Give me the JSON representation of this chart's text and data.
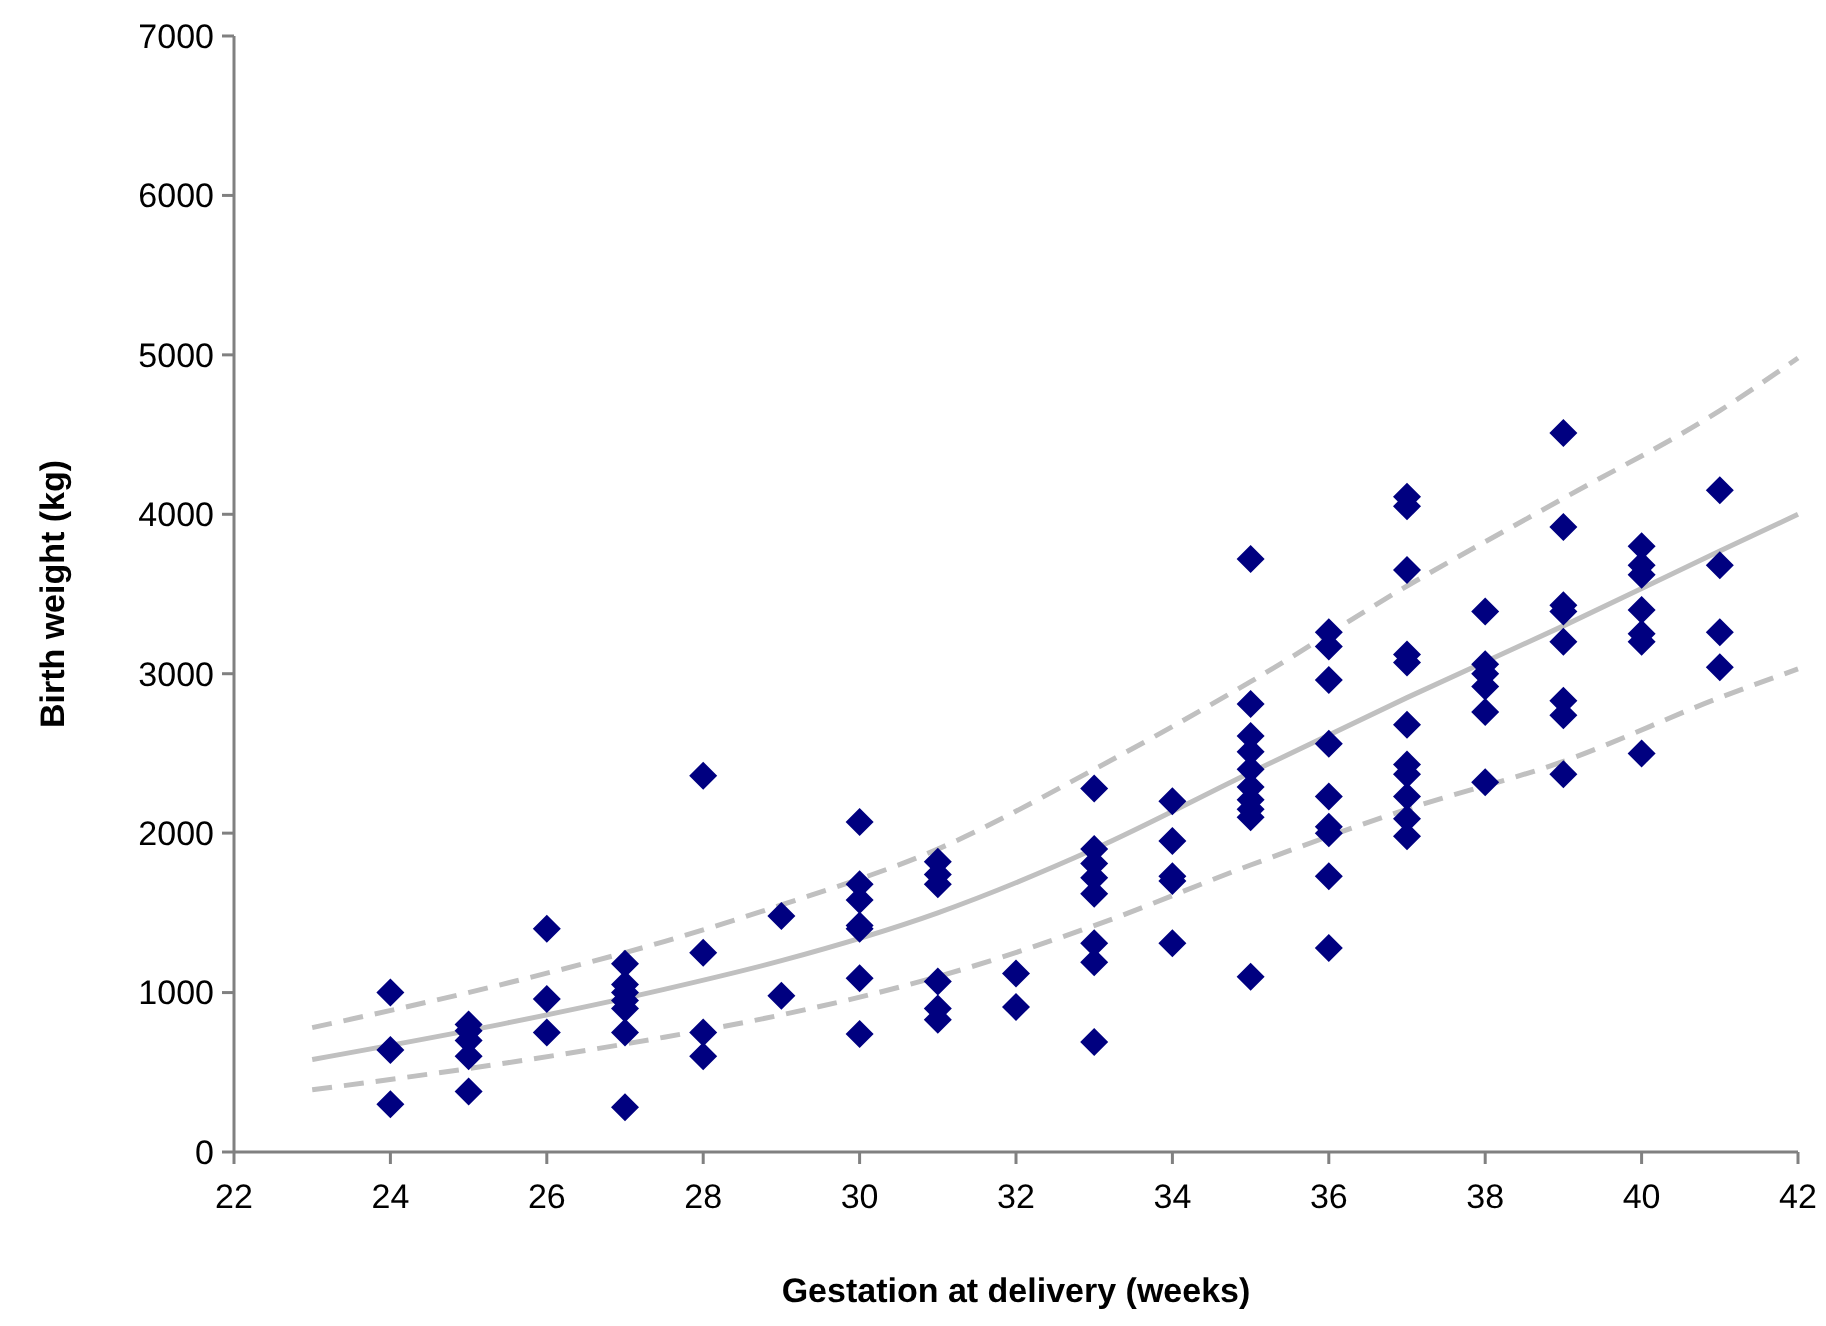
{
  "chart_data": {
    "type": "scatter",
    "xlabel": "Gestation at delivery (weeks)",
    "ylabel": "Birth weight (kg)",
    "xlim": [
      22,
      42
    ],
    "xticks": [
      22,
      24,
      26,
      28,
      30,
      32,
      34,
      36,
      38,
      40,
      42
    ],
    "ylim": [
      0,
      7000
    ],
    "yticks": [
      0,
      1000,
      2000,
      3000,
      4000,
      5000,
      6000,
      7000
    ],
    "grid": false,
    "series": [
      {
        "color": "#000080",
        "marker": "diamond",
        "x": [
          24,
          24,
          24,
          25,
          25,
          25,
          25,
          25,
          26,
          26,
          26,
          27,
          27,
          27,
          27,
          27,
          27,
          27,
          28,
          28,
          28,
          28,
          29,
          29,
          30,
          30,
          30,
          30,
          30,
          30,
          30,
          31,
          31,
          31,
          31,
          31,
          31,
          32,
          32,
          33,
          33,
          33,
          33,
          33,
          33,
          33,
          33,
          34,
          34,
          34,
          34,
          34,
          35,
          35,
          35,
          35,
          35,
          35,
          35,
          35,
          35,
          35,
          36,
          36,
          36,
          36,
          36,
          36,
          36,
          36,
          36,
          37,
          37,
          37,
          37,
          37,
          37,
          37,
          37,
          37,
          37,
          37,
          38,
          38,
          38,
          38,
          38,
          38,
          39,
          39,
          39,
          39,
          39,
          39,
          39,
          39,
          40,
          40,
          40,
          40,
          40,
          40,
          40,
          41,
          41,
          41,
          41
        ],
        "values": [
          1000,
          640,
          300,
          800,
          760,
          700,
          600,
          380,
          1400,
          960,
          750,
          1180,
          1050,
          1000,
          950,
          900,
          750,
          280,
          2360,
          1250,
          750,
          600,
          1480,
          980,
          2070,
          1680,
          1580,
          1420,
          1400,
          1090,
          740,
          1820,
          1740,
          1680,
          1070,
          900,
          830,
          1120,
          910,
          2280,
          1900,
          1810,
          1720,
          1620,
          1310,
          1190,
          690,
          2200,
          1950,
          1730,
          1700,
          1310,
          3720,
          2810,
          2610,
          2510,
          2400,
          2290,
          2210,
          2150,
          2100,
          1100,
          3260,
          3170,
          2960,
          2560,
          2230,
          2040,
          2000,
          1730,
          1280,
          4110,
          4050,
          3650,
          3120,
          3070,
          2680,
          2430,
          2370,
          2230,
          2090,
          1980,
          3390,
          3060,
          3000,
          2920,
          2760,
          2320,
          4510,
          3920,
          3430,
          3390,
          3200,
          2830,
          2740,
          2370,
          3800,
          3680,
          3620,
          3400,
          3250,
          3200,
          2500,
          4150,
          3680,
          3260,
          3040
        ]
      },
      {
        "type": "line",
        "color": "#c0c0c0",
        "line_style": "solid",
        "marker": "none",
        "x": [
          23,
          25.5,
          27.5,
          29,
          31,
          33,
          35,
          37,
          39,
          41,
          42
        ],
        "values": [
          580,
          810,
          1020,
          1200,
          1500,
          1900,
          2380,
          2850,
          3300,
          3770,
          4000
        ]
      },
      {
        "type": "line",
        "color": "#c0c0c0",
        "line_style": "dashed",
        "marker": "none",
        "x": [
          23,
          25.5,
          27.5,
          29,
          31,
          33,
          35,
          37,
          39,
          41,
          42
        ],
        "values": [
          780,
          1060,
          1320,
          1550,
          1900,
          2400,
          2950,
          3550,
          4100,
          4650,
          4980
        ]
      },
      {
        "type": "line",
        "color": "#c0c0c0",
        "line_style": "dashed",
        "marker": "none",
        "x": [
          23,
          25.5,
          27.5,
          29,
          31,
          33,
          35,
          37,
          39,
          41,
          42
        ],
        "values": [
          390,
          560,
          720,
          860,
          1100,
          1420,
          1800,
          2150,
          2450,
          2850,
          3030
        ]
      }
    ]
  }
}
